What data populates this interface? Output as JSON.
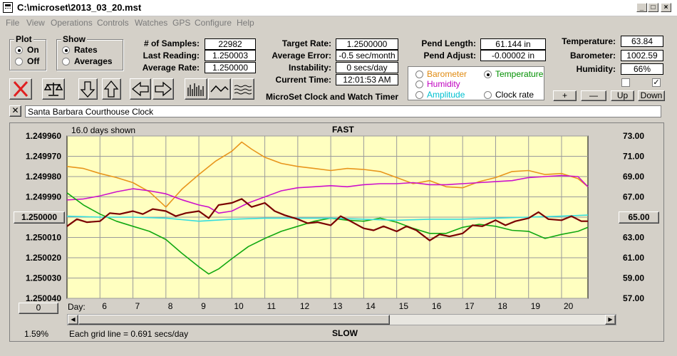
{
  "window": {
    "title": "C:\\microset\\2013_03_20.mst"
  },
  "menu": [
    "File",
    "View",
    "Operations",
    "Controls",
    "Watches",
    "GPS",
    "Configure",
    "Help"
  ],
  "plot_group": {
    "label": "Plot",
    "on": "On",
    "off": "Off",
    "selected": "On"
  },
  "show_group": {
    "label": "Show",
    "rates": "Rates",
    "averages": "Averages",
    "selected": "Rates"
  },
  "stats": {
    "samples_label": "# of Samples:",
    "samples": "22982",
    "last_reading_label": "Last Reading:",
    "last_reading": "1.250003",
    "average_rate_label": "Average Rate:",
    "average_rate": "1.250000",
    "target_rate_label": "Target Rate:",
    "target_rate": "1.2500000",
    "average_error_label": "Average Error:",
    "average_error": "-0.5 sec/month",
    "instability_label": "Instability:",
    "instability": "0 secs/day",
    "current_time_label": "Current Time:",
    "current_time": "12:01:53 AM",
    "pend_length_label": "Pend Length:",
    "pend_length": "61.144 in",
    "pend_adjust_label": "Pend Adjust:",
    "pend_adjust": "-0.00002 in",
    "temperature_label": "Temperature:",
    "temperature": "63.84",
    "barometer_label": "Barometer:",
    "barometer": "1002.59",
    "humidity_label": "Humidity:",
    "humidity": "66%"
  },
  "app_caption": "MicroSet Clock and Watch Timer",
  "sensor_options": {
    "barometer": "Barometer",
    "temperature": "Temperature",
    "humidity": "Humidity",
    "amplitude": "Amplitude",
    "clock_rate": "Clock rate",
    "selected": "Temperature",
    "colors": {
      "barometer": "#e08a10",
      "temperature": "#009000",
      "humidity": "#c000c0",
      "amplitude": "#00c0d0",
      "clock_rate": "#000000"
    }
  },
  "adjust_buttons": {
    "plus": "+",
    "minus": "—",
    "up": "Up",
    "down": "Down"
  },
  "clock_name": "Santa Barbara Courthouse Clock",
  "chart_header": {
    "days_shown": "16.0 days shown",
    "fast": "FAST",
    "slow": "SLOW",
    "grid_note": "Each grid line = 0.691 secs/day",
    "percent": "1.59%",
    "left_btn": "1.250000",
    "right_btn": "65.00",
    "zero_btn": "0",
    "day_label": "Day:"
  },
  "chart_data": {
    "type": "line",
    "left_axis": {
      "ticks": [
        "1.249960",
        "1.249970",
        "1.249980",
        "1.249990",
        "1.250000",
        "1.250010",
        "1.250020",
        "1.250030",
        "1.250040"
      ]
    },
    "right_axis": {
      "ticks": [
        "73.00",
        "71.00",
        "69.00",
        "67.00",
        "65.00",
        "63.00",
        "61.00",
        "59.00",
        "57.00"
      ]
    },
    "x_axis": {
      "label": "Day:",
      "ticks": [
        "6",
        "7",
        "8",
        "9",
        "10",
        "11",
        "12",
        "13",
        "14",
        "15",
        "16",
        "17",
        "18",
        "19",
        "20"
      ]
    },
    "xlim": [
      5.0,
      20.8
    ],
    "series": [
      {
        "name": "Barometer",
        "color": "#e8951c",
        "axis": "right",
        "x": [
          5.0,
          5.5,
          6.0,
          6.5,
          7.0,
          7.5,
          8.0,
          8.5,
          9.0,
          9.5,
          10.0,
          10.3,
          10.6,
          11.0,
          11.5,
          12.0,
          12.5,
          13.0,
          13.5,
          14.0,
          14.5,
          15.0,
          15.5,
          16.0,
          16.5,
          17.0,
          17.5,
          18.0,
          18.5,
          19.0,
          19.5,
          20.0,
          20.5,
          20.8
        ],
        "y": [
          70.0,
          69.8,
          69.3,
          68.9,
          68.4,
          67.5,
          66.0,
          67.8,
          69.2,
          70.5,
          71.5,
          72.4,
          71.7,
          70.9,
          70.3,
          70.0,
          69.8,
          69.6,
          69.8,
          69.7,
          69.5,
          68.9,
          68.3,
          68.6,
          68.0,
          67.9,
          68.5,
          68.9,
          69.5,
          69.6,
          69.2,
          69.3,
          68.8,
          68.0
        ]
      },
      {
        "name": "Humidity",
        "color": "#cc11cc",
        "axis": "right",
        "x": [
          5.0,
          5.5,
          6.0,
          6.5,
          7.0,
          7.5,
          8.0,
          8.5,
          9.0,
          9.3,
          9.6,
          10.0,
          10.5,
          11.0,
          11.5,
          12.0,
          12.5,
          13.0,
          13.5,
          14.0,
          14.5,
          15.0,
          15.5,
          16.0,
          16.5,
          17.0,
          17.5,
          18.0,
          18.5,
          19.0,
          19.5,
          20.0,
          20.5,
          20.8
        ],
        "y": [
          66.7,
          66.8,
          67.1,
          67.5,
          67.8,
          67.6,
          67.3,
          66.7,
          66.2,
          66.0,
          65.4,
          65.6,
          66.4,
          67.0,
          67.6,
          67.9,
          68.0,
          68.1,
          68.0,
          68.2,
          68.3,
          68.3,
          68.4,
          68.2,
          68.2,
          68.3,
          68.4,
          68.5,
          68.6,
          68.9,
          69.0,
          69.1,
          69.0,
          68.0
        ]
      },
      {
        "name": "Temperature",
        "color": "#11a811",
        "axis": "right",
        "x": [
          5.0,
          5.5,
          6.0,
          6.5,
          7.0,
          7.5,
          8.0,
          8.5,
          9.0,
          9.3,
          9.6,
          10.0,
          10.5,
          11.0,
          11.5,
          12.0,
          12.5,
          13.0,
          13.5,
          14.0,
          14.5,
          15.0,
          15.5,
          16.0,
          16.5,
          17.0,
          17.5,
          18.0,
          18.5,
          19.0,
          19.5,
          20.0,
          20.5,
          20.8
        ],
        "y": [
          67.4,
          66.2,
          65.3,
          64.6,
          64.1,
          63.6,
          62.8,
          61.4,
          60.1,
          59.4,
          59.9,
          60.9,
          62.1,
          62.9,
          63.6,
          64.1,
          64.6,
          64.9,
          64.7,
          64.6,
          64.9,
          64.5,
          63.9,
          63.4,
          63.4,
          64.0,
          64.3,
          64.1,
          63.7,
          63.6,
          62.9,
          63.3,
          63.6,
          64.0
        ]
      },
      {
        "name": "Amplitude",
        "color": "#33dddd",
        "axis": "right",
        "x": [
          5.0,
          6.0,
          7.0,
          8.0,
          9.0,
          10.0,
          11.0,
          12.0,
          13.0,
          14.0,
          15.0,
          16.0,
          17.0,
          18.0,
          19.0,
          20.0,
          20.8
        ],
        "y": [
          65.1,
          65.0,
          65.0,
          64.9,
          64.6,
          64.8,
          64.9,
          64.9,
          64.9,
          64.8,
          64.7,
          64.8,
          64.8,
          64.9,
          65.0,
          65.1,
          65.2
        ]
      },
      {
        "name": "Clock rate",
        "color": "#7a0000",
        "axis": "left",
        "x": [
          5.0,
          5.3,
          5.6,
          6.0,
          6.3,
          6.6,
          7.0,
          7.3,
          7.6,
          8.0,
          8.3,
          8.6,
          9.0,
          9.3,
          9.6,
          10.0,
          10.3,
          10.6,
          11.0,
          11.3,
          11.6,
          12.0,
          12.3,
          12.6,
          13.0,
          13.3,
          13.6,
          14.0,
          14.3,
          14.6,
          15.0,
          15.3,
          15.6,
          16.0,
          16.3,
          16.6,
          17.0,
          17.3,
          17.6,
          18.0,
          18.3,
          18.6,
          19.0,
          19.3,
          19.6,
          20.0,
          20.3,
          20.6,
          20.8
        ],
        "y": [
          1.2500045,
          1.250001,
          1.2500025,
          1.250002,
          1.249998,
          1.2499985,
          1.249997,
          1.2499985,
          1.249996,
          1.249997,
          1.2499995,
          1.249998,
          1.249997,
          1.2500005,
          1.249994,
          1.249993,
          1.249991,
          1.249995,
          1.249993,
          1.249997,
          1.249999,
          1.250001,
          1.250003,
          1.2500025,
          1.250004,
          1.2499995,
          1.250002,
          1.2500055,
          1.2500065,
          1.2500045,
          1.250007,
          1.2500045,
          1.2500065,
          1.2500115,
          1.2500085,
          1.2500095,
          1.250008,
          1.250004,
          1.2500045,
          1.2500015,
          1.250004,
          1.250002,
          1.2500005,
          1.2499975,
          1.250001,
          1.2500015,
          1.2499995,
          1.250002,
          1.250002
        ]
      }
    ]
  }
}
